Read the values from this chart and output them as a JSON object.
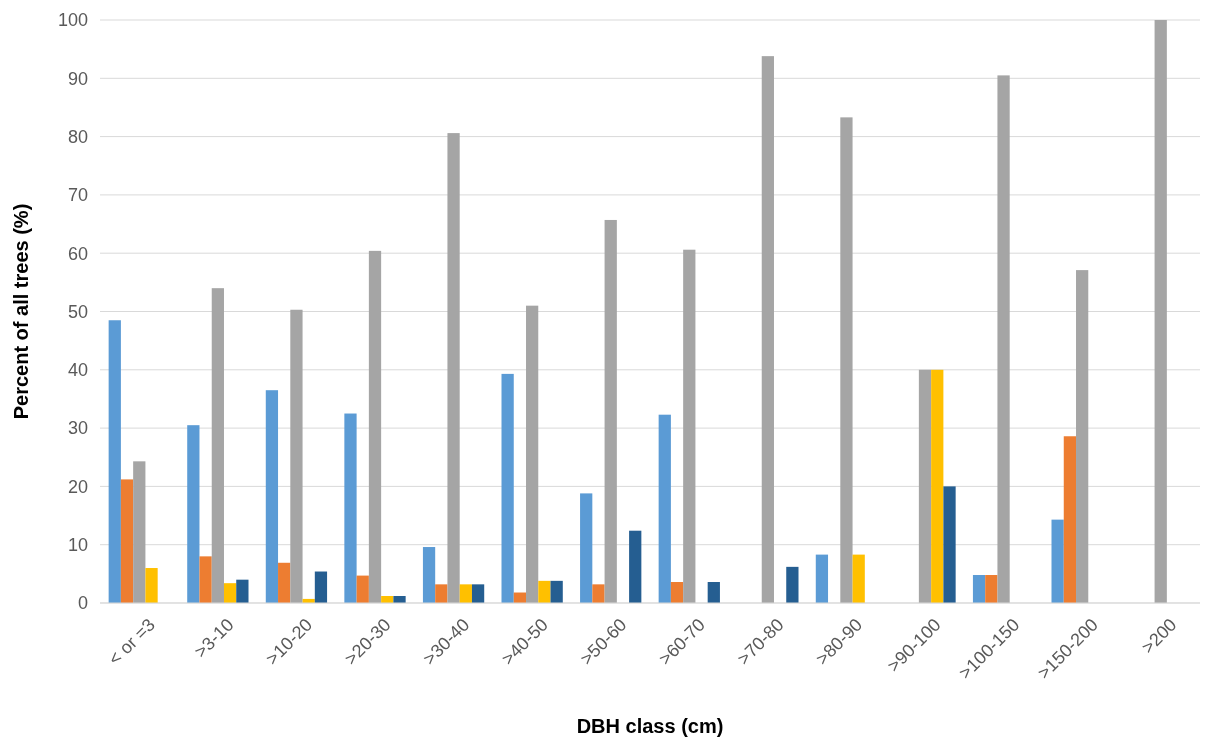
{
  "chart_data": {
    "type": "bar",
    "xlabel": "DBH class (cm)",
    "ylabel": "Percent of all trees (%)",
    "categories": [
      "< or =3",
      ">3-10",
      ">10-20",
      ">20-30",
      ">30-40",
      ">40-50",
      ">50-60",
      ">60-70",
      ">70-80",
      ">80-90",
      ">90-100",
      ">100-150",
      ">150-200",
      ">200"
    ],
    "series": [
      {
        "color": "#5b9bd5",
        "values": [
          48.5,
          30.5,
          36.5,
          32.5,
          9.6,
          39.3,
          18.8,
          32.3,
          null,
          8.3,
          null,
          4.8,
          14.3,
          null
        ]
      },
      {
        "color": "#ed7d31",
        "values": [
          21.2,
          8.0,
          6.9,
          4.7,
          3.2,
          1.8,
          3.2,
          3.6,
          null,
          null,
          null,
          4.8,
          28.6,
          null
        ]
      },
      {
        "color": "#a5a5a5",
        "values": [
          24.3,
          54.0,
          50.3,
          60.4,
          80.6,
          51.0,
          65.7,
          60.6,
          93.8,
          83.3,
          40.0,
          90.5,
          57.1,
          100
        ]
      },
      {
        "color": "#ffc000",
        "values": [
          6.0,
          3.4,
          0.7,
          1.2,
          3.2,
          3.8,
          null,
          null,
          null,
          8.3,
          40.0,
          null,
          null,
          null
        ]
      },
      {
        "color": "#255e91",
        "values": [
          null,
          4.0,
          5.4,
          1.2,
          3.2,
          3.8,
          12.4,
          3.6,
          6.2,
          null,
          20.0,
          null,
          null,
          null
        ]
      }
    ],
    "ylim": [
      0,
      100
    ],
    "yticks": [
      0,
      10,
      20,
      30,
      40,
      50,
      60,
      70,
      80,
      90,
      100
    ],
    "grid": "y"
  }
}
